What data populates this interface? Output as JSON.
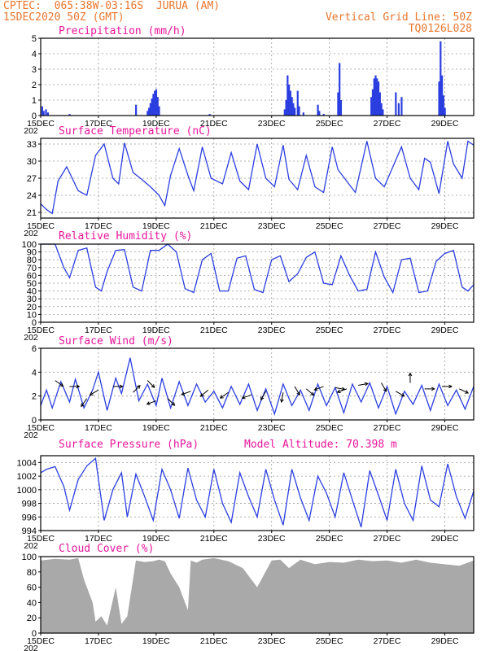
{
  "header": {
    "line1": "CPTEC:  065:38W-03:16S  JURUA (AM)",
    "line2": "15DEC2020 50Z (GMT)",
    "grid_note": "Vertical Grid Line: 50Z",
    "code": "TQ0126L028"
  },
  "colors": {
    "header": "#e8772e",
    "title": "#e8159a",
    "series": "#2b3ee0",
    "cloud": "#a9a9a9",
    "frame": "#000000",
    "grid": "#9a9a9a"
  },
  "x_axis": {
    "start_day": 15,
    "end_day": 30,
    "tick_labels": [
      "15DEC",
      "17DEC",
      "19DEC",
      "21DEC",
      "23DEC",
      "25DEC",
      "27DEC",
      "29DEC"
    ],
    "tick_days": [
      15,
      17,
      19,
      21,
      23,
      25,
      27,
      29
    ],
    "year_fragment": "202"
  },
  "chart_data": [
    {
      "id": "precip",
      "type": "bar",
      "title": "Precipitation (mm/h)",
      "ylim": [
        0,
        5
      ],
      "yticks": [
        0,
        1,
        2,
        3,
        4,
        5
      ],
      "grid": true,
      "bars_day_value": [
        [
          15.05,
          0.6
        ],
        [
          15.1,
          0.3
        ],
        [
          15.18,
          0.4
        ],
        [
          15.25,
          0.2
        ],
        [
          16.0,
          0.1
        ],
        [
          18.3,
          0.7
        ],
        [
          18.7,
          0.3
        ],
        [
          18.75,
          0.5
        ],
        [
          18.8,
          0.8
        ],
        [
          18.85,
          1.1
        ],
        [
          18.9,
          1.4
        ],
        [
          18.95,
          1.6
        ],
        [
          19.0,
          1.7
        ],
        [
          19.05,
          1.2
        ],
        [
          19.1,
          0.6
        ],
        [
          20.85,
          0.1
        ],
        [
          23.45,
          0.4
        ],
        [
          23.5,
          1.0
        ],
        [
          23.55,
          2.6
        ],
        [
          23.6,
          2.0
        ],
        [
          23.65,
          1.6
        ],
        [
          23.7,
          1.2
        ],
        [
          23.75,
          0.8
        ],
        [
          23.8,
          0.5
        ],
        [
          23.9,
          1.6
        ],
        [
          23.95,
          0.6
        ],
        [
          24.1,
          0.2
        ],
        [
          24.6,
          0.7
        ],
        [
          24.65,
          0.3
        ],
        [
          24.8,
          0.1
        ],
        [
          25.3,
          1.5
        ],
        [
          25.35,
          3.4
        ],
        [
          25.4,
          1.0
        ],
        [
          26.45,
          1.2
        ],
        [
          26.5,
          1.7
        ],
        [
          26.55,
          2.4
        ],
        [
          26.6,
          2.6
        ],
        [
          26.65,
          2.4
        ],
        [
          26.7,
          2.2
        ],
        [
          26.75,
          1.5
        ],
        [
          26.8,
          0.8
        ],
        [
          26.85,
          0.4
        ],
        [
          27.3,
          1.5
        ],
        [
          27.4,
          0.8
        ],
        [
          27.5,
          1.2
        ],
        [
          28.8,
          2.2
        ],
        [
          28.85,
          4.8
        ],
        [
          28.9,
          2.6
        ],
        [
          28.95,
          1.3
        ],
        [
          29.0,
          0.5
        ]
      ]
    },
    {
      "id": "temp",
      "type": "line",
      "title": "Surface Temperature (nC)",
      "ylim": [
        20,
        34
      ],
      "yticks": [
        21,
        24,
        27,
        30,
        33
      ],
      "grid": true,
      "x": [
        15,
        15.2,
        15.4,
        15.6,
        15.9,
        16.3,
        16.6,
        16.9,
        17.2,
        17.5,
        17.7,
        17.9,
        18.2,
        18.5,
        18.8,
        19.1,
        19.3,
        19.5,
        19.8,
        20.1,
        20.3,
        20.6,
        20.9,
        21.3,
        21.6,
        21.9,
        22.2,
        22.5,
        22.8,
        23.1,
        23.4,
        23.6,
        23.9,
        24.2,
        24.5,
        24.8,
        25.1,
        25.3,
        25.6,
        25.9,
        26.1,
        26.3,
        26.6,
        26.9,
        27.2,
        27.5,
        27.8,
        28.1,
        28.3,
        28.5,
        28.8,
        29.1,
        29.3,
        29.6,
        29.8,
        30.0
      ],
      "y": [
        22.5,
        21.5,
        20.8,
        26.5,
        29.0,
        24.8,
        24.0,
        31.0,
        33.0,
        27.0,
        26.0,
        33.2,
        28.0,
        26.8,
        25.5,
        24.0,
        22.2,
        27.5,
        32.2,
        27.5,
        24.8,
        32.5,
        27.0,
        26.0,
        31.5,
        26.5,
        25.0,
        33.0,
        27.0,
        25.5,
        32.8,
        26.8,
        25.0,
        31.0,
        25.5,
        24.5,
        32.5,
        28.5,
        26.5,
        24.5,
        29.0,
        33.5,
        27.0,
        25.5,
        29.0,
        32.5,
        27.0,
        25.0,
        30.5,
        29.8,
        24.3,
        33.5,
        29.5,
        27.0,
        33.5,
        32.8
      ]
    },
    {
      "id": "rh",
      "type": "line",
      "title": "Relative Humidity (%)",
      "ylim": [
        0,
        100
      ],
      "yticks": [
        0,
        10,
        20,
        30,
        40,
        50,
        60,
        70,
        80,
        90,
        100
      ],
      "grid": true,
      "x": [
        15,
        15.3,
        15.5,
        15.8,
        16.0,
        16.3,
        16.6,
        16.9,
        17.1,
        17.3,
        17.6,
        17.9,
        18.2,
        18.5,
        18.8,
        19.1,
        19.4,
        19.7,
        20.0,
        20.3,
        20.6,
        20.9,
        21.2,
        21.5,
        21.8,
        22.1,
        22.4,
        22.7,
        23.0,
        23.3,
        23.6,
        23.9,
        24.2,
        24.5,
        24.8,
        25.1,
        25.4,
        25.7,
        26.0,
        26.3,
        26.6,
        26.9,
        27.2,
        27.5,
        27.8,
        28.1,
        28.4,
        28.7,
        29.0,
        29.3,
        29.6,
        29.8,
        30.0
      ],
      "y": [
        100,
        100,
        100,
        70,
        57,
        92,
        95,
        45,
        40,
        65,
        92,
        93,
        45,
        40,
        92,
        92,
        100,
        90,
        43,
        38,
        80,
        88,
        40,
        40,
        82,
        85,
        42,
        38,
        80,
        85,
        52,
        62,
        83,
        90,
        50,
        48,
        85,
        60,
        40,
        42,
        90,
        58,
        38,
        80,
        82,
        38,
        40,
        78,
        88,
        92,
        45,
        40,
        48
      ]
    },
    {
      "id": "wind",
      "type": "line",
      "title": "Surface Wind (m/s)",
      "ylim": [
        0,
        6
      ],
      "yticks": [
        0,
        2,
        4,
        6
      ],
      "grid": true,
      "x": [
        15,
        15.2,
        15.4,
        15.7,
        16.0,
        16.2,
        16.5,
        16.8,
        17.0,
        17.3,
        17.6,
        17.8,
        18.1,
        18.4,
        18.7,
        19.0,
        19.2,
        19.5,
        19.8,
        20.1,
        20.4,
        20.7,
        21.0,
        21.3,
        21.6,
        21.9,
        22.2,
        22.5,
        22.8,
        23.1,
        23.4,
        23.7,
        24.0,
        24.3,
        24.6,
        24.9,
        25.2,
        25.5,
        25.8,
        26.1,
        26.4,
        26.7,
        27.0,
        27.3,
        27.6,
        27.9,
        28.2,
        28.5,
        28.8,
        29.1,
        29.4,
        29.7,
        30.0
      ],
      "y": [
        1.2,
        2.5,
        1.0,
        3.2,
        1.5,
        3.4,
        1.0,
        2.5,
        4.0,
        0.8,
        3.5,
        2.2,
        5.2,
        1.6,
        3.0,
        1.2,
        3.5,
        1.0,
        3.2,
        1.2,
        3.0,
        1.5,
        2.4,
        1.0,
        2.8,
        1.3,
        3.0,
        0.8,
        2.6,
        0.5,
        3.0,
        1.2,
        2.5,
        0.8,
        3.0,
        1.2,
        2.7,
        0.6,
        3.0,
        1.5,
        3.1,
        1.0,
        2.8,
        0.5,
        2.4,
        1.3,
        2.9,
        0.8,
        3.0,
        1.2,
        2.5,
        0.9,
        2.8
      ],
      "arrows": [
        [
          15.5,
          3.3,
          -35
        ],
        [
          16.0,
          2.8,
          0
        ],
        [
          16.6,
          1.8,
          235
        ],
        [
          17.0,
          2.5,
          210
        ],
        [
          17.5,
          2.8,
          0
        ],
        [
          18.2,
          2.3,
          45
        ],
        [
          18.7,
          3.3,
          -45
        ],
        [
          19.0,
          1.6,
          200
        ],
        [
          19.4,
          1.8,
          315
        ],
        [
          20.2,
          2.4,
          200
        ],
        [
          20.8,
          2.5,
          220
        ],
        [
          21.5,
          2.3,
          215
        ],
        [
          22.3,
          2.1,
          200
        ],
        [
          22.8,
          2.4,
          240
        ],
        [
          23.4,
          2.3,
          260
        ],
        [
          23.8,
          2.8,
          -60
        ],
        [
          24.2,
          2.6,
          -40
        ],
        [
          24.8,
          2.8,
          200
        ],
        [
          25.2,
          2.7,
          -10
        ],
        [
          25.6,
          2.6,
          200
        ],
        [
          26.0,
          2.9,
          10
        ],
        [
          26.8,
          3.1,
          -60
        ],
        [
          27.3,
          2.4,
          -30
        ],
        [
          27.8,
          3.1,
          90
        ],
        [
          28.3,
          2.6,
          0
        ],
        [
          28.9,
          2.8,
          0
        ],
        [
          29.5,
          2.6,
          -25
        ]
      ]
    },
    {
      "id": "pressure",
      "type": "line",
      "title": "Surface Pressure (hPa)",
      "annotation": "Model Altitude: 70.398 m",
      "ylim": [
        994,
        1005
      ],
      "yticks": [
        994,
        996,
        998,
        1000,
        1002,
        1004
      ],
      "grid": true,
      "x": [
        15,
        15.2,
        15.5,
        15.8,
        16.0,
        16.3,
        16.6,
        16.9,
        17.2,
        17.5,
        17.8,
        18.0,
        18.3,
        18.6,
        18.9,
        19.2,
        19.5,
        19.8,
        20.1,
        20.4,
        20.7,
        21.0,
        21.3,
        21.6,
        21.9,
        22.2,
        22.5,
        22.8,
        23.1,
        23.4,
        23.7,
        24.0,
        24.3,
        24.6,
        24.9,
        25.2,
        25.5,
        25.8,
        26.1,
        26.4,
        26.7,
        27.0,
        27.3,
        27.6,
        27.9,
        28.2,
        28.5,
        28.8,
        29.1,
        29.4,
        29.7,
        30.0
      ],
      "y": [
        1002.5,
        1003.0,
        1003.4,
        1000.5,
        997.0,
        1001.5,
        1003.5,
        1004.6,
        995.5,
        1000.0,
        1002.5,
        996.0,
        1002.3,
        999.0,
        995.5,
        1003.0,
        1000.0,
        995.8,
        1003.2,
        998.5,
        996.0,
        1003.0,
        998.0,
        995.2,
        1002.5,
        999.0,
        996.0,
        1003.0,
        998.5,
        994.8,
        1003.0,
        998.8,
        995.5,
        1002.0,
        999.5,
        996.0,
        1002.5,
        998.5,
        994.5,
        1002.8,
        999.2,
        995.5,
        1003.0,
        998.0,
        995.5,
        1003.5,
        998.5,
        997.5,
        1003.8,
        999.0,
        995.8,
        999.8
      ]
    },
    {
      "id": "cloud",
      "type": "area",
      "title": "Cloud Cover (%)",
      "ylim": [
        0,
        100
      ],
      "yticks": [
        0,
        20,
        40,
        60,
        80,
        100
      ],
      "grid": false,
      "x": [
        15,
        15.5,
        16.0,
        16.3,
        16.5,
        16.8,
        16.9,
        17.1,
        17.3,
        17.6,
        17.8,
        18.0,
        18.3,
        18.6,
        18.9,
        19.1,
        19.3,
        19.5,
        19.8,
        20.0,
        20.1,
        20.2,
        20.4,
        20.6,
        20.8,
        21.0,
        21.5,
        22.0,
        22.5,
        23.0,
        23.3,
        23.6,
        24.0,
        24.5,
        25.0,
        25.5,
        26.0,
        26.5,
        27.0,
        27.5,
        28.0,
        28.5,
        29.0,
        29.5,
        30.0
      ],
      "y": [
        95,
        97,
        96,
        98,
        70,
        40,
        15,
        22,
        10,
        60,
        12,
        22,
        95,
        93,
        94,
        96,
        94,
        78,
        60,
        40,
        30,
        95,
        92,
        96,
        97,
        98,
        94,
        85,
        60,
        95,
        96,
        85,
        96,
        90,
        93,
        92,
        96,
        94,
        95,
        92,
        96,
        92,
        90,
        88,
        95
      ]
    }
  ]
}
